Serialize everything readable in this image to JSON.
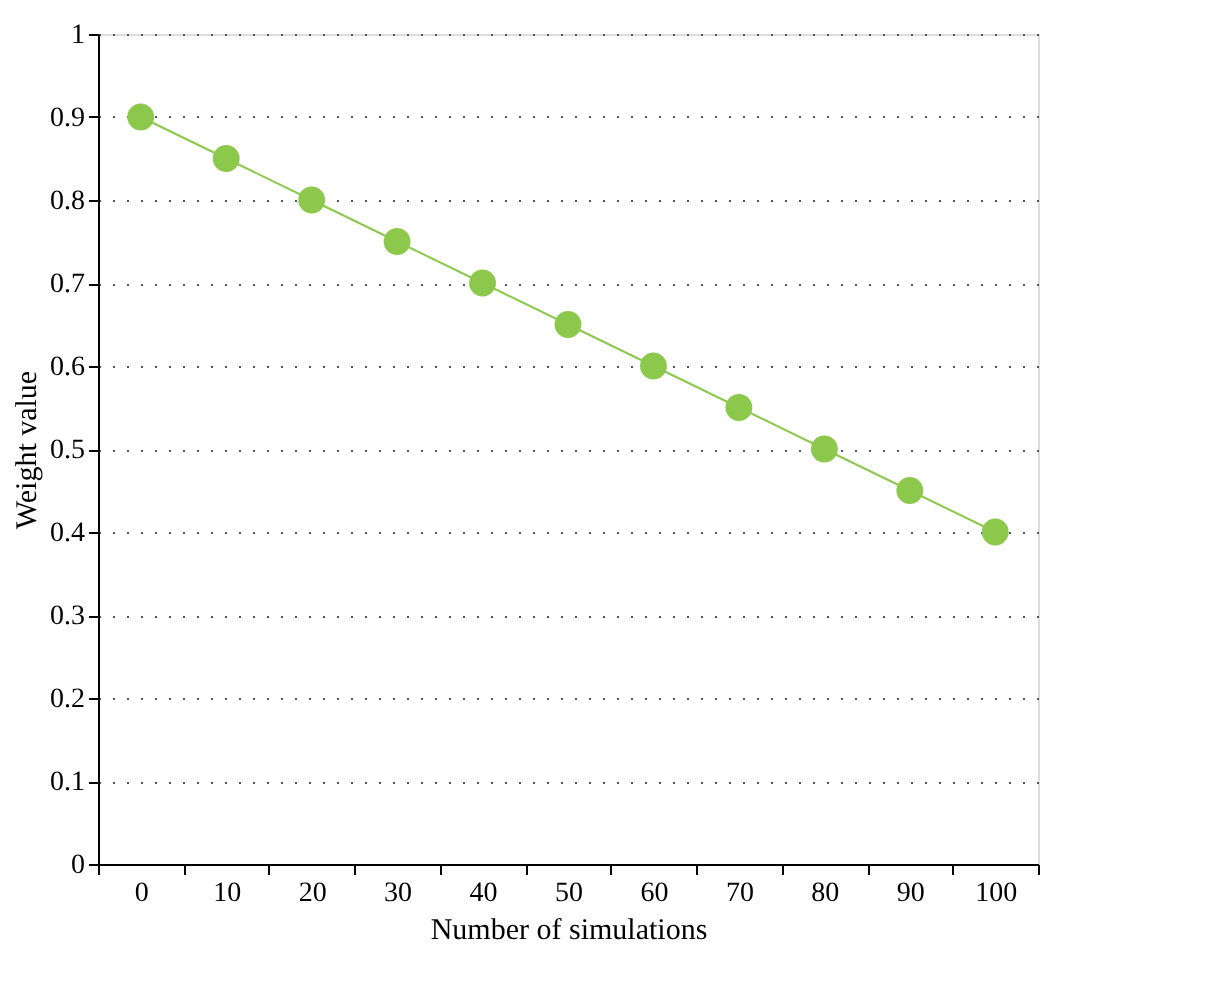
{
  "chart_data": {
    "type": "line",
    "xlabel": "Number of simulations",
    "ylabel": "Weight value",
    "categories": [
      "0",
      "10",
      "20",
      "30",
      "40",
      "50",
      "60",
      "70",
      "80",
      "90",
      "100"
    ],
    "series": [
      {
        "color": "#8cc84b",
        "values": [
          0.9,
          0.85,
          0.8,
          0.75,
          0.7,
          0.65,
          0.6,
          0.55,
          0.5,
          0.45,
          0.4
        ]
      }
    ],
    "ylim": [
      0,
      1
    ],
    "yticks": [
      0,
      0.1,
      0.2,
      0.3,
      0.4,
      0.5,
      0.6,
      0.7,
      0.8,
      0.9,
      1
    ],
    "grid": "y",
    "marker": "circle",
    "line_style": "solid"
  }
}
